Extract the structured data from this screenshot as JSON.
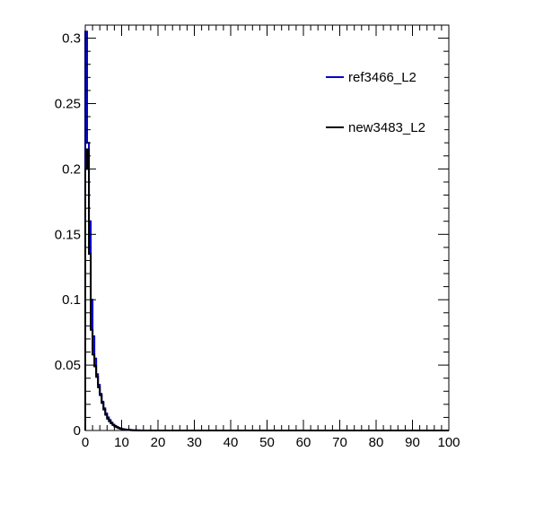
{
  "chart_data": {
    "type": "line",
    "title": "",
    "xlabel": "",
    "ylabel": "",
    "xlim": [
      0,
      100
    ],
    "ylim": [
      0,
      0.31
    ],
    "x_tick_labels": [
      "0",
      "10",
      "20",
      "30",
      "40",
      "50",
      "60",
      "70",
      "80",
      "90",
      "100"
    ],
    "y_tick_labels": [
      "0",
      "0.05",
      "0.1",
      "0.15",
      "0.2",
      "0.25",
      "0.3"
    ],
    "grid": false,
    "legend_position": "top-right",
    "bin_width": 0.5,
    "series": [
      {
        "name": "ref3466_L2",
        "color": "#0000cc",
        "x": [
          0,
          0.5,
          1,
          1.5,
          2,
          2.5,
          3,
          3.5,
          4,
          4.5,
          5,
          5.5,
          6,
          6.5,
          7,
          7.5,
          8,
          8.5,
          9,
          9.5,
          10,
          10.5,
          11,
          11.5,
          12,
          12.5,
          13,
          13.5,
          14,
          14.5
        ],
        "values": [
          0.305,
          0.22,
          0.16,
          0.1,
          0.072,
          0.055,
          0.043,
          0.035,
          0.028,
          0.022,
          0.017,
          0.013,
          0.01,
          0.008,
          0.006,
          0.0045,
          0.0035,
          0.0027,
          0.002,
          0.0015,
          0.0011,
          0.0009,
          0.0007,
          0.0005,
          0.0004,
          0.0003,
          0.0002,
          0.0002,
          0.0001,
          0.0001
        ]
      },
      {
        "name": "new3483_L2",
        "color": "#000000",
        "x": [
          0,
          0.5,
          1,
          1.5,
          2,
          2.5,
          3,
          3.5,
          4,
          4.5,
          5,
          5.5,
          6,
          6.5,
          7,
          7.5,
          8,
          8.5,
          9,
          9.5,
          10,
          10.5,
          11,
          11.5,
          12,
          12.5,
          13,
          13.5,
          14,
          14.5
        ],
        "values": [
          0.2,
          0.215,
          0.135,
          0.077,
          0.058,
          0.049,
          0.041,
          0.033,
          0.027,
          0.021,
          0.016,
          0.012,
          0.009,
          0.007,
          0.0055,
          0.0042,
          0.0032,
          0.0025,
          0.0019,
          0.0014,
          0.001,
          0.0008,
          0.0006,
          0.0005,
          0.0004,
          0.0003,
          0.0002,
          0.0002,
          0.0001,
          0.0001
        ]
      }
    ]
  }
}
